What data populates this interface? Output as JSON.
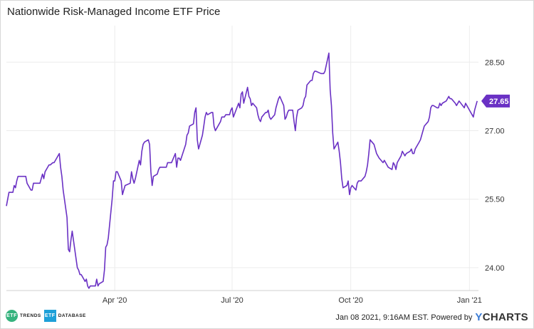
{
  "chart_data": {
    "type": "line",
    "title": "Nationwide Risk-Managed Income ETF Price",
    "x_tick_labels": [
      "Apr '20",
      "Jul '20",
      "Oct '20",
      "Jan '21"
    ],
    "y_tick_labels": [
      "24.00",
      "25.50",
      "27.00",
      "28.50"
    ],
    "ylim": [
      23.5,
      29.3
    ],
    "y_ticks": [
      24.0,
      25.5,
      27.0,
      28.5
    ],
    "grid": true,
    "last_value_label": "27.65",
    "series": [
      {
        "color": "#6a31c4",
        "points": [
          [
            "2020-01-08",
            25.35
          ],
          [
            "2020-01-09",
            25.5
          ],
          [
            "2020-01-10",
            25.65
          ],
          [
            "2020-01-13",
            25.65
          ],
          [
            "2020-01-14",
            25.8
          ],
          [
            "2020-01-15",
            25.75
          ],
          [
            "2020-01-16",
            25.9
          ],
          [
            "2020-01-17",
            26.0
          ],
          [
            "2020-01-21",
            26.0
          ],
          [
            "2020-01-23",
            26.0
          ],
          [
            "2020-01-24",
            25.85
          ],
          [
            "2020-01-27",
            25.7
          ],
          [
            "2020-01-28",
            25.7
          ],
          [
            "2020-01-29",
            25.85
          ],
          [
            "2020-01-31",
            25.85
          ],
          [
            "2020-02-03",
            25.85
          ],
          [
            "2020-02-04",
            25.95
          ],
          [
            "2020-02-05",
            26.05
          ],
          [
            "2020-02-06",
            25.95
          ],
          [
            "2020-02-07",
            26.1
          ],
          [
            "2020-02-10",
            26.25
          ],
          [
            "2020-02-11",
            26.25
          ],
          [
            "2020-02-13",
            26.3
          ],
          [
            "2020-02-14",
            26.3
          ],
          [
            "2020-02-18",
            26.5
          ],
          [
            "2020-02-19",
            26.2
          ],
          [
            "2020-02-20",
            26.0
          ],
          [
            "2020-02-21",
            25.7
          ],
          [
            "2020-02-24",
            25.1
          ],
          [
            "2020-02-25",
            24.4
          ],
          [
            "2020-02-26",
            24.35
          ],
          [
            "2020-02-27",
            24.6
          ],
          [
            "2020-02-28",
            24.8
          ],
          [
            "2020-03-02",
            24.2
          ],
          [
            "2020-03-03",
            24.0
          ],
          [
            "2020-03-04",
            23.95
          ],
          [
            "2020-03-05",
            23.85
          ],
          [
            "2020-03-06",
            23.85
          ],
          [
            "2020-03-09",
            23.7
          ],
          [
            "2020-03-10",
            23.75
          ],
          [
            "2020-03-11",
            23.6
          ],
          [
            "2020-03-12",
            23.55
          ],
          [
            "2020-03-13",
            23.6
          ],
          [
            "2020-03-16",
            23.6
          ],
          [
            "2020-03-17",
            23.6
          ],
          [
            "2020-03-18",
            23.75
          ],
          [
            "2020-03-19",
            23.6
          ],
          [
            "2020-03-20",
            23.65
          ],
          [
            "2020-03-23",
            23.7
          ],
          [
            "2020-03-24",
            23.95
          ],
          [
            "2020-03-25",
            24.45
          ],
          [
            "2020-03-26",
            24.5
          ],
          [
            "2020-03-27",
            24.65
          ],
          [
            "2020-03-30",
            25.5
          ],
          [
            "2020-03-31",
            25.9
          ],
          [
            "2020-04-01",
            25.9
          ],
          [
            "2020-04-02",
            26.1
          ],
          [
            "2020-04-03",
            26.1
          ],
          [
            "2020-04-06",
            25.9
          ],
          [
            "2020-04-07",
            25.6
          ],
          [
            "2020-04-08",
            25.7
          ],
          [
            "2020-04-09",
            25.8
          ],
          [
            "2020-04-13",
            25.85
          ],
          [
            "2020-04-14",
            26.1
          ],
          [
            "2020-04-15",
            25.95
          ],
          [
            "2020-04-16",
            25.85
          ],
          [
            "2020-04-17",
            25.95
          ],
          [
            "2020-04-20",
            26.35
          ],
          [
            "2020-04-21",
            26.25
          ],
          [
            "2020-04-22",
            26.55
          ],
          [
            "2020-04-23",
            26.7
          ],
          [
            "2020-04-24",
            26.75
          ],
          [
            "2020-04-27",
            26.8
          ],
          [
            "2020-04-28",
            26.7
          ],
          [
            "2020-04-29",
            26.1
          ],
          [
            "2020-04-30",
            25.8
          ],
          [
            "2020-05-01",
            26.0
          ],
          [
            "2020-05-04",
            26.05
          ],
          [
            "2020-05-05",
            26.15
          ],
          [
            "2020-05-06",
            26.2
          ],
          [
            "2020-05-07",
            26.2
          ],
          [
            "2020-05-08",
            26.2
          ],
          [
            "2020-05-11",
            26.2
          ],
          [
            "2020-05-12",
            26.3
          ],
          [
            "2020-05-13",
            26.3
          ],
          [
            "2020-05-14",
            26.3
          ],
          [
            "2020-05-15",
            26.3
          ],
          [
            "2020-05-18",
            26.5
          ],
          [
            "2020-05-19",
            26.2
          ],
          [
            "2020-05-20",
            26.4
          ],
          [
            "2020-05-21",
            26.4
          ],
          [
            "2020-05-22",
            26.35
          ],
          [
            "2020-05-26",
            26.7
          ],
          [
            "2020-05-27",
            26.9
          ],
          [
            "2020-05-28",
            26.95
          ],
          [
            "2020-05-29",
            27.1
          ],
          [
            "2020-06-01",
            27.15
          ],
          [
            "2020-06-02",
            27.4
          ],
          [
            "2020-06-03",
            27.5
          ],
          [
            "2020-06-04",
            26.8
          ],
          [
            "2020-06-05",
            26.6
          ],
          [
            "2020-06-08",
            26.9
          ],
          [
            "2020-06-09",
            27.1
          ],
          [
            "2020-06-10",
            27.3
          ],
          [
            "2020-06-11",
            27.4
          ],
          [
            "2020-06-12",
            27.35
          ],
          [
            "2020-06-15",
            27.4
          ],
          [
            "2020-06-16",
            27.4
          ],
          [
            "2020-06-17",
            27.1
          ],
          [
            "2020-06-18",
            27.0
          ],
          [
            "2020-06-19",
            27.05
          ],
          [
            "2020-06-22",
            27.2
          ],
          [
            "2020-06-23",
            27.3
          ],
          [
            "2020-06-24",
            27.3
          ],
          [
            "2020-06-25",
            27.3
          ],
          [
            "2020-06-26",
            27.35
          ],
          [
            "2020-06-29",
            27.35
          ],
          [
            "2020-06-30",
            27.45
          ],
          [
            "2020-07-01",
            27.5
          ],
          [
            "2020-07-02",
            27.3
          ],
          [
            "2020-07-06",
            27.6
          ],
          [
            "2020-07-07",
            27.5
          ],
          [
            "2020-07-08",
            27.8
          ],
          [
            "2020-07-09",
            27.85
          ],
          [
            "2020-07-10",
            27.6
          ],
          [
            "2020-07-13",
            27.95
          ],
          [
            "2020-07-14",
            27.75
          ],
          [
            "2020-07-15",
            27.7
          ],
          [
            "2020-07-16",
            27.55
          ],
          [
            "2020-07-17",
            27.6
          ],
          [
            "2020-07-20",
            27.5
          ],
          [
            "2020-07-21",
            27.35
          ],
          [
            "2020-07-22",
            27.25
          ],
          [
            "2020-07-23",
            27.2
          ],
          [
            "2020-07-24",
            27.3
          ],
          [
            "2020-07-27",
            27.4
          ],
          [
            "2020-07-28",
            27.4
          ],
          [
            "2020-07-29",
            27.45
          ],
          [
            "2020-07-30",
            27.3
          ],
          [
            "2020-07-31",
            27.25
          ],
          [
            "2020-08-03",
            27.35
          ],
          [
            "2020-08-04",
            27.5
          ],
          [
            "2020-08-05",
            27.6
          ],
          [
            "2020-08-06",
            27.7
          ],
          [
            "2020-08-07",
            27.75
          ],
          [
            "2020-08-10",
            27.55
          ],
          [
            "2020-08-11",
            27.25
          ],
          [
            "2020-08-12",
            27.3
          ],
          [
            "2020-08-13",
            27.4
          ],
          [
            "2020-08-14",
            27.45
          ],
          [
            "2020-08-17",
            27.45
          ],
          [
            "2020-08-18",
            27.2
          ],
          [
            "2020-08-19",
            27.0
          ],
          [
            "2020-08-20",
            27.3
          ],
          [
            "2020-08-21",
            27.45
          ],
          [
            "2020-08-24",
            27.5
          ],
          [
            "2020-08-25",
            27.55
          ],
          [
            "2020-08-26",
            27.7
          ],
          [
            "2020-08-27",
            27.75
          ],
          [
            "2020-08-28",
            28.0
          ],
          [
            "2020-08-31",
            28.1
          ],
          [
            "2020-09-01",
            28.1
          ],
          [
            "2020-09-02",
            28.25
          ],
          [
            "2020-09-03",
            28.3
          ],
          [
            "2020-09-04",
            28.3
          ],
          [
            "2020-09-08",
            28.25
          ],
          [
            "2020-09-09",
            28.25
          ],
          [
            "2020-09-10",
            28.25
          ],
          [
            "2020-09-11",
            28.3
          ],
          [
            "2020-09-14",
            28.7
          ],
          [
            "2020-09-15",
            27.9
          ],
          [
            "2020-09-16",
            27.55
          ],
          [
            "2020-09-17",
            26.95
          ],
          [
            "2020-09-18",
            26.6
          ],
          [
            "2020-09-21",
            26.75
          ],
          [
            "2020-09-22",
            26.55
          ],
          [
            "2020-09-23",
            26.3
          ],
          [
            "2020-09-24",
            25.95
          ],
          [
            "2020-09-25",
            25.75
          ],
          [
            "2020-09-28",
            25.8
          ],
          [
            "2020-09-29",
            25.9
          ],
          [
            "2020-09-30",
            25.6
          ],
          [
            "2020-10-01",
            25.75
          ],
          [
            "2020-10-02",
            25.8
          ],
          [
            "2020-10-05",
            25.7
          ],
          [
            "2020-10-06",
            25.85
          ],
          [
            "2020-10-07",
            25.9
          ],
          [
            "2020-10-08",
            25.9
          ],
          [
            "2020-10-09",
            25.9
          ],
          [
            "2020-10-12",
            26.0
          ],
          [
            "2020-10-13",
            26.1
          ],
          [
            "2020-10-14",
            26.25
          ],
          [
            "2020-10-15",
            26.5
          ],
          [
            "2020-10-16",
            26.8
          ],
          [
            "2020-10-19",
            26.7
          ],
          [
            "2020-10-20",
            26.6
          ],
          [
            "2020-10-21",
            26.5
          ],
          [
            "2020-10-22",
            26.45
          ],
          [
            "2020-10-23",
            26.4
          ],
          [
            "2020-10-26",
            26.3
          ],
          [
            "2020-10-27",
            26.35
          ],
          [
            "2020-10-28",
            26.3
          ],
          [
            "2020-10-29",
            26.25
          ],
          [
            "2020-10-30",
            26.2
          ],
          [
            "2020-11-02",
            26.15
          ],
          [
            "2020-11-03",
            26.3
          ],
          [
            "2020-11-04",
            26.25
          ],
          [
            "2020-11-05",
            26.15
          ],
          [
            "2020-11-06",
            26.3
          ],
          [
            "2020-11-09",
            26.45
          ],
          [
            "2020-11-10",
            26.55
          ],
          [
            "2020-11-11",
            26.5
          ],
          [
            "2020-11-12",
            26.45
          ],
          [
            "2020-11-13",
            26.5
          ],
          [
            "2020-11-16",
            26.55
          ],
          [
            "2020-11-17",
            26.6
          ],
          [
            "2020-11-18",
            26.5
          ],
          [
            "2020-11-19",
            26.5
          ],
          [
            "2020-11-20",
            26.6
          ],
          [
            "2020-11-23",
            26.75
          ],
          [
            "2020-11-24",
            26.8
          ],
          [
            "2020-11-25",
            26.9
          ],
          [
            "2020-11-27",
            27.1
          ],
          [
            "2020-11-30",
            27.2
          ],
          [
            "2020-12-01",
            27.3
          ],
          [
            "2020-12-02",
            27.5
          ],
          [
            "2020-12-03",
            27.55
          ],
          [
            "2020-12-04",
            27.55
          ],
          [
            "2020-12-07",
            27.5
          ],
          [
            "2020-12-08",
            27.5
          ],
          [
            "2020-12-09",
            27.6
          ],
          [
            "2020-12-10",
            27.55
          ],
          [
            "2020-12-11",
            27.6
          ],
          [
            "2020-12-14",
            27.65
          ],
          [
            "2020-12-15",
            27.7
          ],
          [
            "2020-12-16",
            27.75
          ],
          [
            "2020-12-17",
            27.7
          ],
          [
            "2020-12-18",
            27.7
          ],
          [
            "2020-12-21",
            27.6
          ],
          [
            "2020-12-22",
            27.55
          ],
          [
            "2020-12-23",
            27.6
          ],
          [
            "2020-12-24",
            27.65
          ],
          [
            "2020-12-28",
            27.5
          ],
          [
            "2020-12-29",
            27.6
          ],
          [
            "2020-12-30",
            27.55
          ],
          [
            "2020-12-31",
            27.5
          ],
          [
            "2021-01-04",
            27.3
          ],
          [
            "2021-01-05",
            27.45
          ],
          [
            "2021-01-06",
            27.55
          ],
          [
            "2021-01-07",
            27.65
          ]
        ]
      }
    ]
  },
  "footer": {
    "logo_etf_trends_badge": "ETF",
    "logo_etf_trends_text": "TRENDS",
    "logo_etf_database_badge": "ETF",
    "logo_etf_database_text": "DATABASE",
    "timestamp": "Jan 08 2021, 9:16AM EST. Powered by",
    "brand_y": "Y",
    "brand_rest": "CHARTS"
  }
}
